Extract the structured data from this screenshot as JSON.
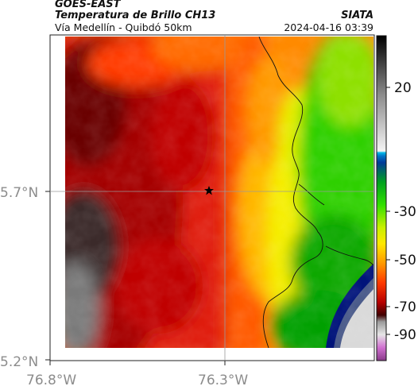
{
  "header": {
    "satellite": "GOES-EAST",
    "product": "Temperatura de Brillo CH13",
    "area": "Vía Medellín - Quibdó 50km",
    "brand": "SIATA",
    "timestamp": "2024-04-16 03:39"
  },
  "map": {
    "lat_ticks": [
      "5.7°N",
      "5.2°N"
    ],
    "lon_ticks": [
      "76.8°W",
      "76.3°W"
    ],
    "marker": "star"
  },
  "colorbar": {
    "ticks": [
      "20",
      "-30",
      "-50",
      "-70",
      "-90"
    ]
  },
  "colors": {
    "warm_dark": "#2a2a2a",
    "deep_red": "#a40000",
    "red": "#e3120b",
    "orange": "#ff7a00",
    "yellow": "#f2ee00",
    "green": "#17c400",
    "blue": "#00137a",
    "grey": "#c9c9c9",
    "magenta": "#c040c0"
  }
}
